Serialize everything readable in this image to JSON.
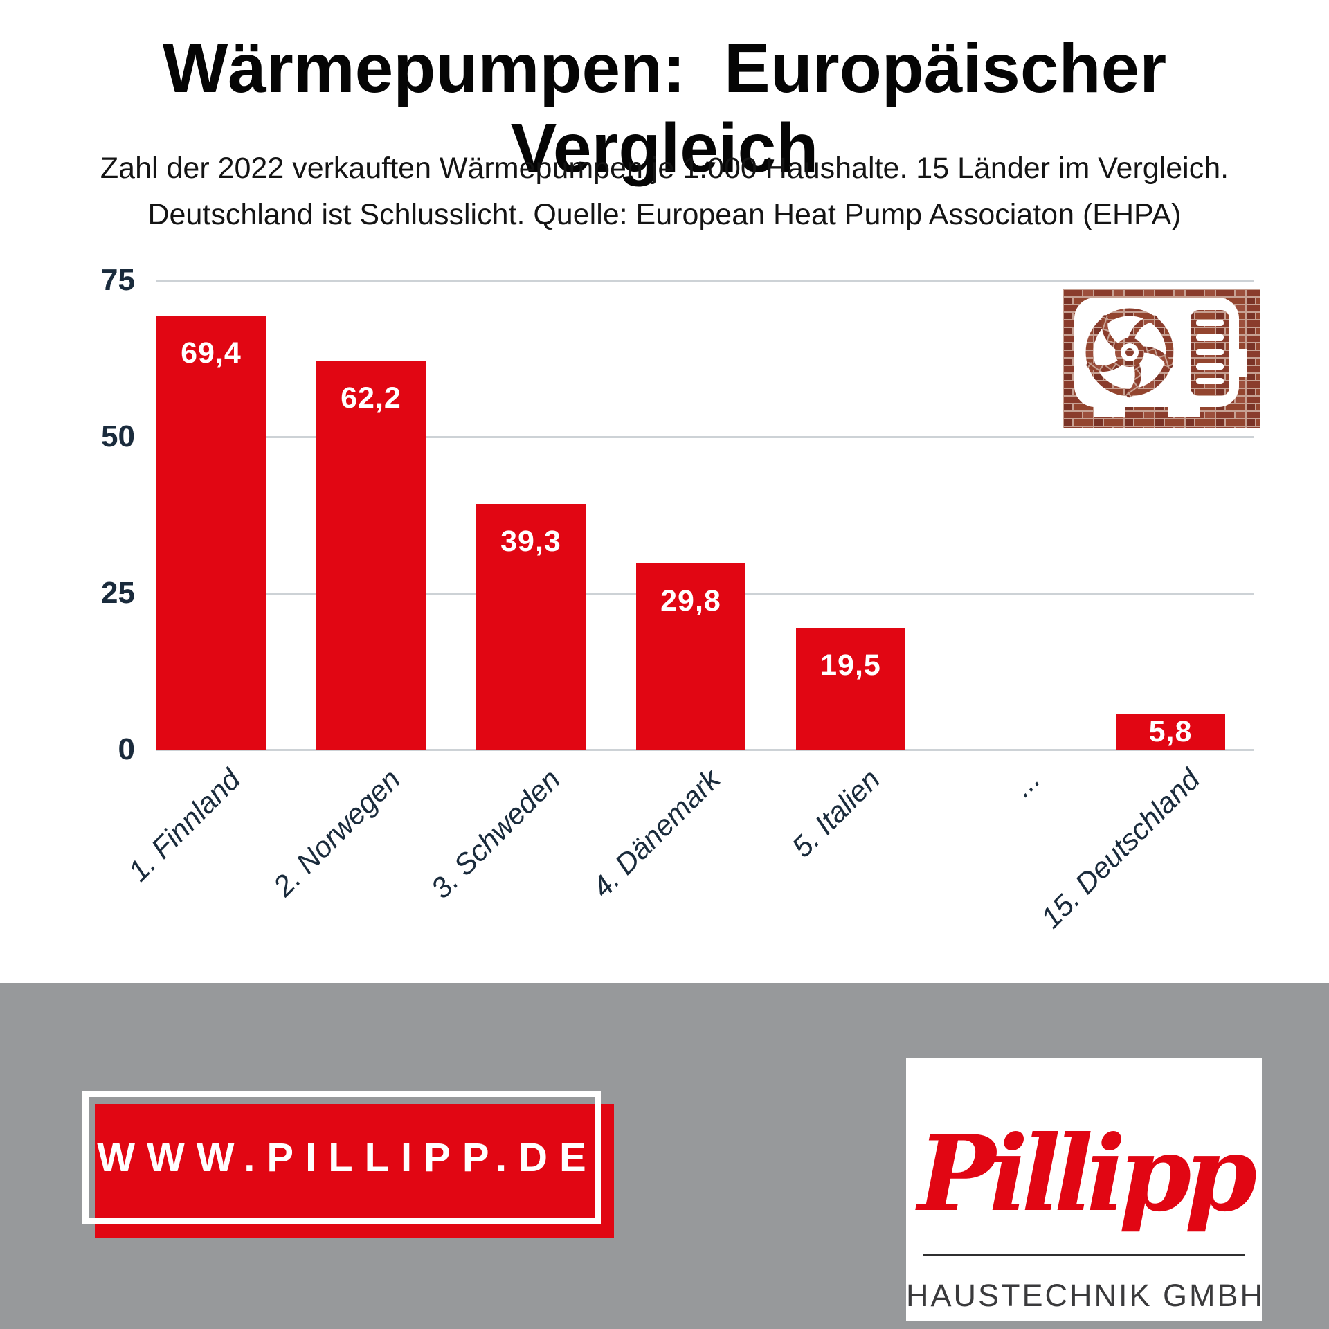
{
  "header": {
    "title": "Wärmepumpen:  Europäischer Vergleich",
    "subtitle_line1": "Zahl der 2022 verkauften Wärmepumpen je 1.000 Haushalte. 15 Länder im Vergleich.",
    "subtitle_line2": "Deutschland ist Schlusslicht. Quelle: European Heat Pump Associaton (EHPA)"
  },
  "chart_data": {
    "type": "bar",
    "categories": [
      "1. Finnland",
      "2. Norwegen",
      "3. Schweden",
      "4. Dänemark",
      "5. Italien",
      "...",
      "15. Deutschland"
    ],
    "values": [
      69.4,
      62.2,
      39.3,
      29.8,
      19.5,
      null,
      5.8
    ],
    "value_labels": [
      "69,4",
      "62,2",
      "39,3",
      "29,8",
      "19,5",
      "",
      "5,8"
    ],
    "yticks": [
      0,
      25,
      50,
      75
    ],
    "ylim": [
      0,
      75
    ],
    "title": "",
    "xlabel": "",
    "ylabel": "",
    "grid": "on",
    "legend": "none",
    "bar_color": "#e10613",
    "tick_color": "#1a2b3c",
    "gridline_color": "#cdd2d6"
  },
  "icon": {
    "name": "heat-pump-outdoor-unit",
    "style": "white unit silhouette on red brick texture"
  },
  "footer": {
    "website_label": "WWW.PILLIPP.DE",
    "logo_script": "Pillipp",
    "logo_subtext": "HAUSTECHNIK GMBH",
    "band_color": "#97999b",
    "accent_color": "#e10613"
  }
}
